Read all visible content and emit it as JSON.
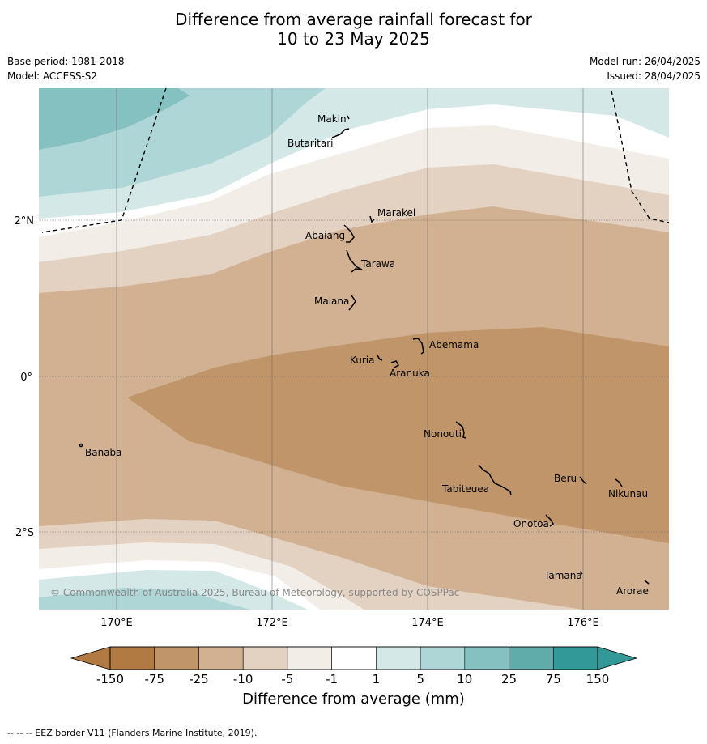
{
  "header": {
    "title_line1": "Difference from average rainfall forecast for",
    "title_line2": "10 to 23 May 2025",
    "base_period": "Base period: 1981-2018",
    "model": "Model: ACCESS-S2",
    "model_run": "Model run: 26/04/2025",
    "issued": "Issued: 28/04/2025"
  },
  "map": {
    "lat_labels": [
      "2°N",
      "0°",
      "2°S"
    ],
    "lon_labels": [
      "170°E",
      "172°E",
      "174°E",
      "176°E"
    ],
    "places": [
      "Makin",
      "Butaritari",
      "Marakei",
      "Abaiang",
      "Tarawa",
      "Maiana",
      "Abemama",
      "Kuria",
      "Aranuka",
      "Banaba",
      "Nonouti",
      "Beru",
      "Tabiteuea",
      "Nikunau",
      "Onotoa",
      "Tamana",
      "Arorae"
    ],
    "copyright": "© Commonwealth of Australia 2025, Bureau of Meteorology, supported by COSPPac",
    "colors": {
      "m75_150": "#b07a42",
      "m25_75": "#c09569",
      "m10_25": "#d1b191",
      "m5_10": "#e3d1c1",
      "m1_5": "#f3ede8",
      "neutral": "#ffffff",
      "p1_5": "#d4e8e8",
      "p5_10": "#afd6d6",
      "p10_25": "#84c1c0",
      "p25_75": "#60acab",
      "p75_150": "#329998"
    }
  },
  "colorbar": {
    "labels": [
      "-150",
      "-75",
      "-25",
      "-10",
      "-5",
      "-1",
      "1",
      "5",
      "10",
      "25",
      "75",
      "150"
    ],
    "colors": [
      "#b07a42",
      "#c09569",
      "#d1b191",
      "#e3d1c1",
      "#f3ede8",
      "#ffffff",
      "#d4e8e8",
      "#afd6d6",
      "#84c1c0",
      "#60acab",
      "#329998"
    ],
    "title": "Difference from average (mm)"
  },
  "footnote": "--  --  -- EEZ border V11 (Flanders Marine Institute, 2019)."
}
